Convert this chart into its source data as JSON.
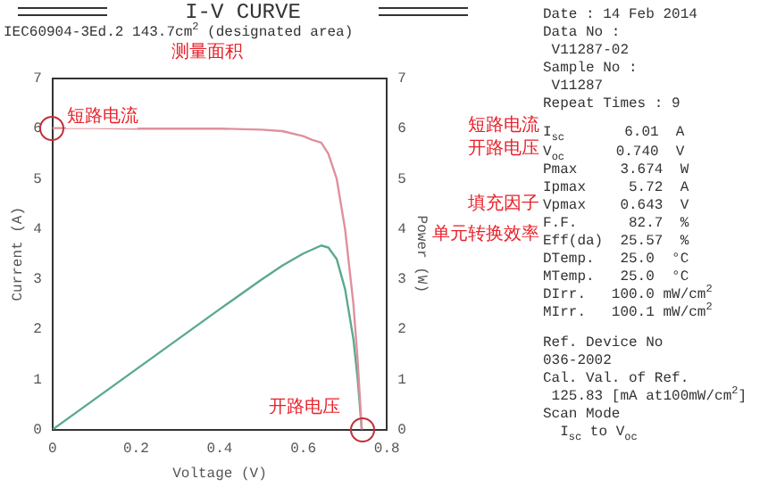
{
  "chart_data": {
    "type": "line",
    "title": "I-V CURVE",
    "subtitle": "IEC60904-3Ed.2 143.7cm$^{2}$ (designated area)",
    "xlabel": "Voltage (V)",
    "ylabel": "Current (A)",
    "y2label": "Power (W)",
    "xlim": [
      0,
      0.8
    ],
    "xticks": [
      0,
      0.2,
      0.4,
      0.6,
      0.8
    ],
    "ylim": [
      0,
      7
    ],
    "yticks": [
      0,
      1,
      2,
      3,
      4,
      5,
      6,
      7
    ],
    "y2lim": [
      0,
      7
    ],
    "y2ticks": [
      0,
      1,
      2,
      3,
      4,
      5,
      6,
      7
    ],
    "grid": false,
    "legend": false,
    "marker": "none",
    "line_style": "solid",
    "series": [
      {
        "color": "#e0909c",
        "x": [
          0,
          0.1,
          0.2,
          0.3,
          0.4,
          0.5,
          0.55,
          0.6,
          0.62,
          0.643,
          0.66,
          0.68,
          0.7,
          0.72,
          0.73,
          0.74
        ],
        "values": [
          6.01,
          6.01,
          6.0,
          6.0,
          6.0,
          5.98,
          5.95,
          5.85,
          5.78,
          5.72,
          5.5,
          5.0,
          4.0,
          2.5,
          1.4,
          0
        ]
      },
      {
        "color": "#5aaa8a",
        "axis": "y2",
        "x": [
          0,
          0.1,
          0.2,
          0.3,
          0.4,
          0.5,
          0.55,
          0.6,
          0.643,
          0.66,
          0.68,
          0.7,
          0.72,
          0.73,
          0.74
        ],
        "values": [
          0,
          0.6,
          1.2,
          1.8,
          2.4,
          2.99,
          3.27,
          3.51,
          3.67,
          3.63,
          3.4,
          2.8,
          1.8,
          1.02,
          0
        ]
      }
    ],
    "annotations": [
      "测量面积",
      "Date : 14 Feb 2014",
      "Data No :",
      " V11287-02",
      "Sample No :",
      " V11287",
      "Repeat Times : 9",
      "短路电流",
      "I$_{sc}$       6.01  A",
      "开路电压",
      "V$_{oc}$      0.740  V",
      "Pmax     3.674  W",
      "Ipmax     5.72  A",
      "Vpmax    0.643  V",
      "填充因子",
      "F.F.      82.7  %",
      "单元转换效率",
      "Eff(da)  25.57  %",
      "DTemp.   25.0  °C",
      "MTemp.   25.0  °C",
      "DIrr.   100.0 mW/cm$^{2}$",
      "MIrr.   100.1 mW/cm$^{2}$",
      "Ref. Device No",
      "036-2002",
      "Cal. Val. of Ref.",
      " 125.83 [mA at100mW/cm$^{2}$]",
      "Scan Mode",
      "  I$_{sc}$ to V$_{oc}$",
      {
        "text": "短路电流",
        "x": 0,
        "y": 6.01
      },
      {
        "text": "开路电压",
        "x": 0.74,
        "y": 0
      }
    ]
  }
}
